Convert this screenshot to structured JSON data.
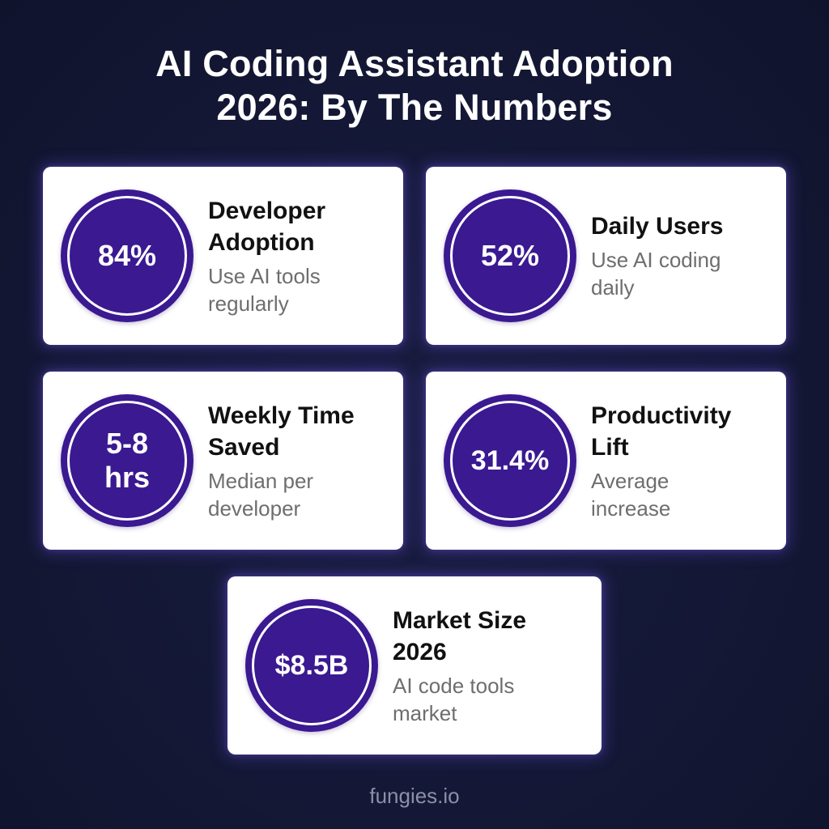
{
  "title": {
    "line1": "AI Coding Assistant Adoption",
    "line2": "2026: By The Numbers"
  },
  "colors": {
    "background": "#141836",
    "circle": "#3a1991",
    "card": "#ffffff",
    "label": "#111111",
    "description": "#6e6e6e",
    "footer": "#8c8fa6"
  },
  "stats": [
    {
      "value": "84%",
      "label": "Developer Adoption",
      "description": "Use AI tools regularly"
    },
    {
      "value": "52%",
      "label": "Daily Users",
      "description": "Use AI coding daily"
    },
    {
      "value": "5-8 hrs",
      "label": "Weekly Time Saved",
      "description": "Median per developer"
    },
    {
      "value": "31.4%",
      "label": "Productivity Lift",
      "description": "Average increase"
    },
    {
      "value": "$8.5B",
      "label": "Market Size 2026",
      "description": "AI code tools market"
    }
  ],
  "footer": "fungies.io"
}
